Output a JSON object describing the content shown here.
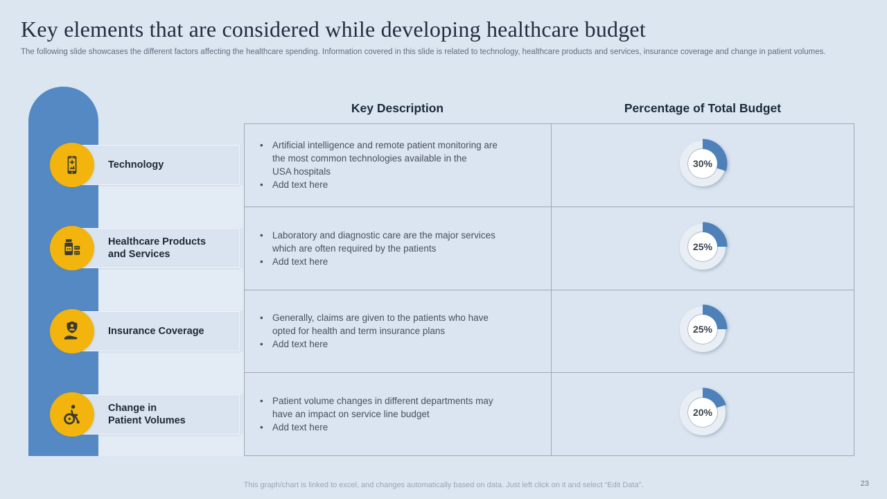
{
  "slide": {
    "title": "Key elements that are considered while developing healthcare budget",
    "subtitle": "The following slide showcases the different factors affecting the healthcare spending. Information covered in this slide is related to technology, healthcare products and services, insurance coverage and change in patient volumes.",
    "footer": "This graph/chart is linked to excel, and changes automatically based on data. Just left click on it and select “Edit Data”.",
    "page_number": "23"
  },
  "table": {
    "col1_header": "Key Description",
    "col2_header": "Percentage of Total Budget"
  },
  "rows": [
    {
      "label": "Technology",
      "icon": "smartphone-icon",
      "bullets": [
        "Artificial intelligence and remote patient monitoring are\nthe most common technologies available in the\nUSA hospitals",
        "Add text here"
      ],
      "percent": 30,
      "percent_label": "30%"
    },
    {
      "label": "Healthcare Products\nand Services",
      "icon": "medicine-bottle-icon",
      "bullets": [
        "Laboratory and diagnostic care are the major services\nwhich are often required by the patients",
        "Add text here"
      ],
      "percent": 25,
      "percent_label": "25%"
    },
    {
      "label": "Insurance Coverage",
      "icon": "shield-hand-icon",
      "bullets": [
        "Generally, claims are given to the patients who have\nopted for health and term insurance plans",
        "Add text here"
      ],
      "percent": 25,
      "percent_label": "25%"
    },
    {
      "label": "Change in\nPatient Volumes",
      "icon": "wheelchair-icon",
      "bullets": [
        "Patient volume changes in different departments may\nhave an impact on service line budget",
        "Add text here"
      ],
      "percent": 20,
      "percent_label": "20%"
    }
  ],
  "chart_data": {
    "type": "pie",
    "title": "Percentage of Total Budget",
    "categories": [
      "Technology",
      "Healthcare Products and Services",
      "Insurance Coverage",
      "Change in Patient Volumes"
    ],
    "values": [
      30,
      25,
      25,
      20
    ],
    "labels_shown_in_donut_centers": [
      "30%",
      "25%",
      "25%",
      "20%"
    ],
    "style": "four separate single-value donut gauges, blue arc clockwise from 12 o'clock on light track"
  },
  "colors": {
    "background": "#DCE6F1",
    "accent_blue": "#5489C4",
    "icon_yellow": "#F2B40D",
    "donut_fill": "#4E80BA",
    "donut_track": "#E9EEF4",
    "table_border": "#9FA8B2"
  }
}
